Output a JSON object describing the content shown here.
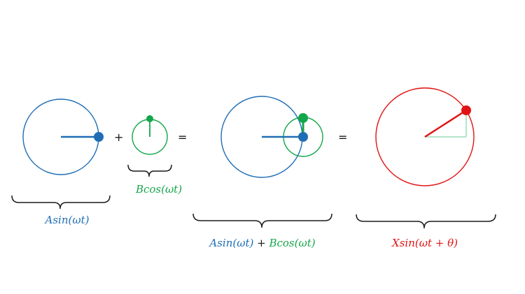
{
  "colors": {
    "blue": "#1f6db5",
    "green": "#13a64a",
    "red": "#e11313",
    "light_green": "#b3e6cc",
    "black": "#1a1a1a"
  },
  "operators": {
    "plus": "+",
    "equals_1": "=",
    "equals_2": "="
  },
  "labels": {
    "a_sin": "Asin(ωt)",
    "b_cos": "Bcos(ωt)",
    "sum_a": "Asin(ωt)",
    "sum_plus": " + ",
    "sum_b": "Bcos(ωt)",
    "result": "Xsin(ωt + θ)"
  }
}
